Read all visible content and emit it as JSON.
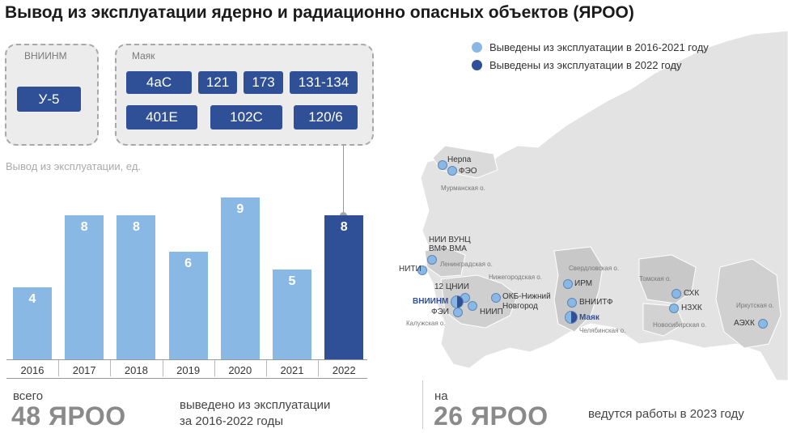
{
  "title": "Вывод из эксплуатации ядерно и радиационно опасных объектов (ЯРОО)",
  "groups": {
    "vniinm": {
      "label": "ВНИИНМ",
      "items": [
        "У-5"
      ]
    },
    "mayak": {
      "label": "Маяк",
      "items": [
        "4аС",
        "121",
        "173",
        "131-134",
        "401Е",
        "102С",
        "120/6"
      ]
    }
  },
  "chart_label": "Вывод из эксплуатации, ед.",
  "chart_data": {
    "type": "bar",
    "categories": [
      "2016",
      "2017",
      "2018",
      "2019",
      "2020",
      "2021",
      "2022"
    ],
    "values": [
      4,
      8,
      8,
      6,
      9,
      5,
      8
    ],
    "ylabel": "Вывод из эксплуатации, ед.",
    "highlight": "2022",
    "colors": {
      "default": "#8ab8e4",
      "highlight": "#2f4f96"
    }
  },
  "stats": {
    "total": {
      "prefix": "всего",
      "value": "48 ЯРОО",
      "desc_line1": "выведено из эксплуатации",
      "desc_line2": "за 2016-2022 годы"
    },
    "ongoing": {
      "prefix": "на",
      "value": "26 ЯРОО",
      "desc": "ведутся работы в 2023 году"
    }
  },
  "legend": [
    {
      "label": "Выведены из эксплуатации в 2016-2021 году",
      "color": "#8ab8e4"
    },
    {
      "label": "Выведены из эксплуатации в 2022 году",
      "color": "#2f4f96"
    }
  ],
  "map": {
    "sites": {
      "nerpa": "Нерпа",
      "feo": "ФЭО",
      "nii_vunc": "НИИ ВУНЦ",
      "vmf_vma": "ВМФ ВМА",
      "niti": "НИТИ",
      "cnii12": "12 ЦНИИ",
      "vniinm": "ВНИИНМ",
      "fei": "ФЭИ",
      "niip": "НИИП",
      "okb": "ОКБ-Нижний",
      "novgorod": "Новгород",
      "irm": "ИРМ",
      "vniitf": "ВНИИТФ",
      "mayak": "Маяк",
      "shk": "СХК",
      "nzhk": "НЗХК",
      "aehk": "АЭХК"
    },
    "regions": {
      "murmansk": "Мурманская о.",
      "leningrad": "Ленинградская о.",
      "nizhegorod": "Нижегородская о.",
      "kaluga": "Калужская о.",
      "sverdlovsk": "Свердловская о.",
      "chelyabinsk": "Челябинская о.",
      "tomsk": "Томская о.",
      "novosibirsk": "Новосибирская о.",
      "irkutsk": "Иркутская о."
    }
  }
}
